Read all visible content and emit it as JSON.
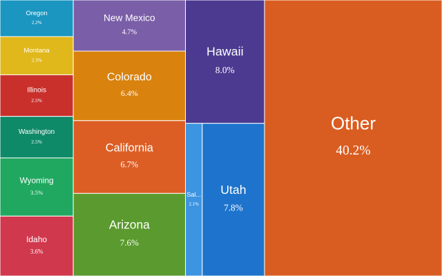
{
  "chart_data": {
    "type": "treemap",
    "categories": [
      "Oregon",
      "Montana",
      "Illinois",
      "Washington",
      "Wyoming",
      "Idaho",
      "New Mexico",
      "Colorado",
      "California",
      "Arizona",
      "Hawaii",
      "Sal...",
      "Utah",
      "Other"
    ],
    "values": [
      2.2,
      2.3,
      2.5,
      2.5,
      3.5,
      3.6,
      4.7,
      6.4,
      6.7,
      7.6,
      8.0,
      2.1,
      7.8,
      40.2
    ],
    "value_labels": [
      "2.2%",
      "2.3%",
      "2.5%",
      "2.5%",
      "3.5%",
      "3.6%",
      "4.7%",
      "6.4%",
      "6.7%",
      "7.6%",
      "8.0%",
      "2.1%",
      "7.8%",
      "40.2%"
    ],
    "colors": [
      "#1a96c0",
      "#e0b81c",
      "#c9302c",
      "#0f8a68",
      "#20a860",
      "#d0384e",
      "#7a5ea8",
      "#d9820e",
      "#dc5e25",
      "#5a9a2e",
      "#4b3a90",
      "#3d94e0",
      "#1e74cc",
      "#d95d20"
    ]
  }
}
